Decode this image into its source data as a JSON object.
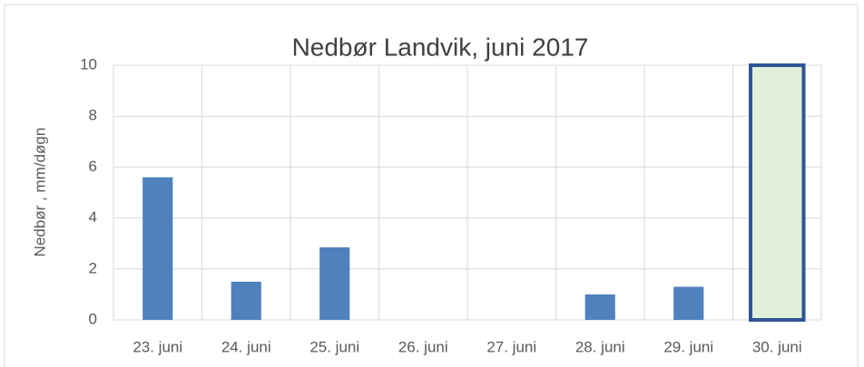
{
  "chart_data": {
    "type": "bar",
    "title": "Nedbør Landvik, juni 2017",
    "y_label": "Nedbør , mm/døgn",
    "categories": [
      "23. juni",
      "24. juni",
      "25. juni",
      "26. juni",
      "27. juni",
      "28. juni",
      "29. juni",
      "30. juni"
    ],
    "values": [
      5.6,
      1.5,
      2.85,
      0,
      0,
      1.0,
      1.3,
      null
    ],
    "color": "#4f81bd",
    "ylim": [
      0,
      10
    ],
    "yticks": [
      0,
      2,
      4,
      6,
      8,
      10
    ],
    "grid": true,
    "highlight_index": 7,
    "highlight_color": "#e2efd9",
    "highlight_border": "#2f5597"
  }
}
